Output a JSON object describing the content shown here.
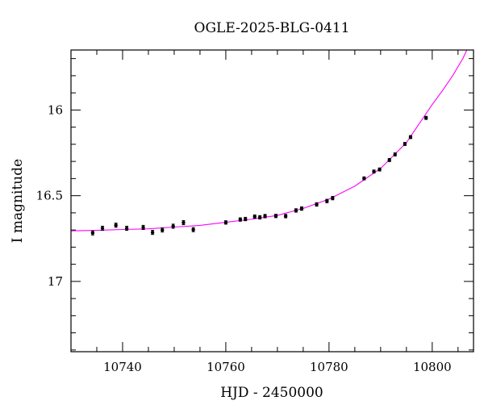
{
  "chart_data": {
    "type": "scatter",
    "title": "OGLE-2025-BLG-0411",
    "xlabel": "HJD - 2450000",
    "ylabel": "I magnitude",
    "xlim": [
      10730,
      10808
    ],
    "ylim": [
      17.41,
      15.65
    ],
    "y_inverted": true,
    "xticks": [
      10740,
      10760,
      10780,
      10800
    ],
    "xtick_labels": [
      "10740",
      "10760",
      "10780",
      "10800"
    ],
    "yticks": [
      16,
      16.5,
      17
    ],
    "ytick_labels": [
      "16",
      "16.5",
      "17"
    ],
    "grid": false,
    "legend": "none",
    "colors": {
      "points": "#000000",
      "model": "#ff00ff",
      "axes": "#000000"
    },
    "series": [
      {
        "kind": "points_with_errorbars",
        "x": [
          10734.2,
          10736.1,
          10738.7,
          10740.8,
          10744.0,
          10745.8,
          10747.7,
          10749.8,
          10751.8,
          10753.7,
          10760.0,
          10762.8,
          10763.8,
          10765.6,
          10766.6,
          10767.6,
          10769.7,
          10771.6,
          10773.6,
          10774.7,
          10777.6,
          10779.6,
          10780.7,
          10786.8,
          10788.7,
          10789.8,
          10791.7,
          10792.8,
          10794.7,
          10795.8,
          10798.8
        ],
        "y": [
          16.717,
          16.69,
          16.672,
          16.69,
          16.685,
          16.714,
          16.7,
          16.678,
          16.657,
          16.698,
          16.656,
          16.639,
          16.636,
          16.622,
          16.626,
          16.619,
          16.618,
          16.619,
          16.586,
          16.575,
          16.551,
          16.531,
          16.514,
          16.399,
          16.359,
          16.347,
          16.292,
          16.259,
          16.198,
          16.158,
          16.046
        ],
        "yerr": [
          0.012,
          0.012,
          0.012,
          0.012,
          0.012,
          0.012,
          0.012,
          0.012,
          0.012,
          0.012,
          0.01,
          0.01,
          0.01,
          0.01,
          0.01,
          0.01,
          0.01,
          0.01,
          0.01,
          0.01,
          0.01,
          0.01,
          0.01,
          0.009,
          0.009,
          0.009,
          0.009,
          0.009,
          0.009,
          0.009,
          0.009
        ]
      },
      {
        "kind": "model_curve",
        "x": [
          10730,
          10735,
          10740,
          10745,
          10750,
          10755,
          10760,
          10765,
          10770,
          10775,
          10780,
          10785,
          10790,
          10795,
          10800,
          10802,
          10804,
          10806,
          10806.7
        ],
        "y": [
          16.705,
          16.702,
          16.697,
          16.693,
          16.683,
          16.673,
          16.655,
          16.637,
          16.615,
          16.574,
          16.52,
          16.444,
          16.341,
          16.19,
          15.968,
          15.886,
          15.798,
          15.696,
          15.65
        ]
      }
    ]
  }
}
